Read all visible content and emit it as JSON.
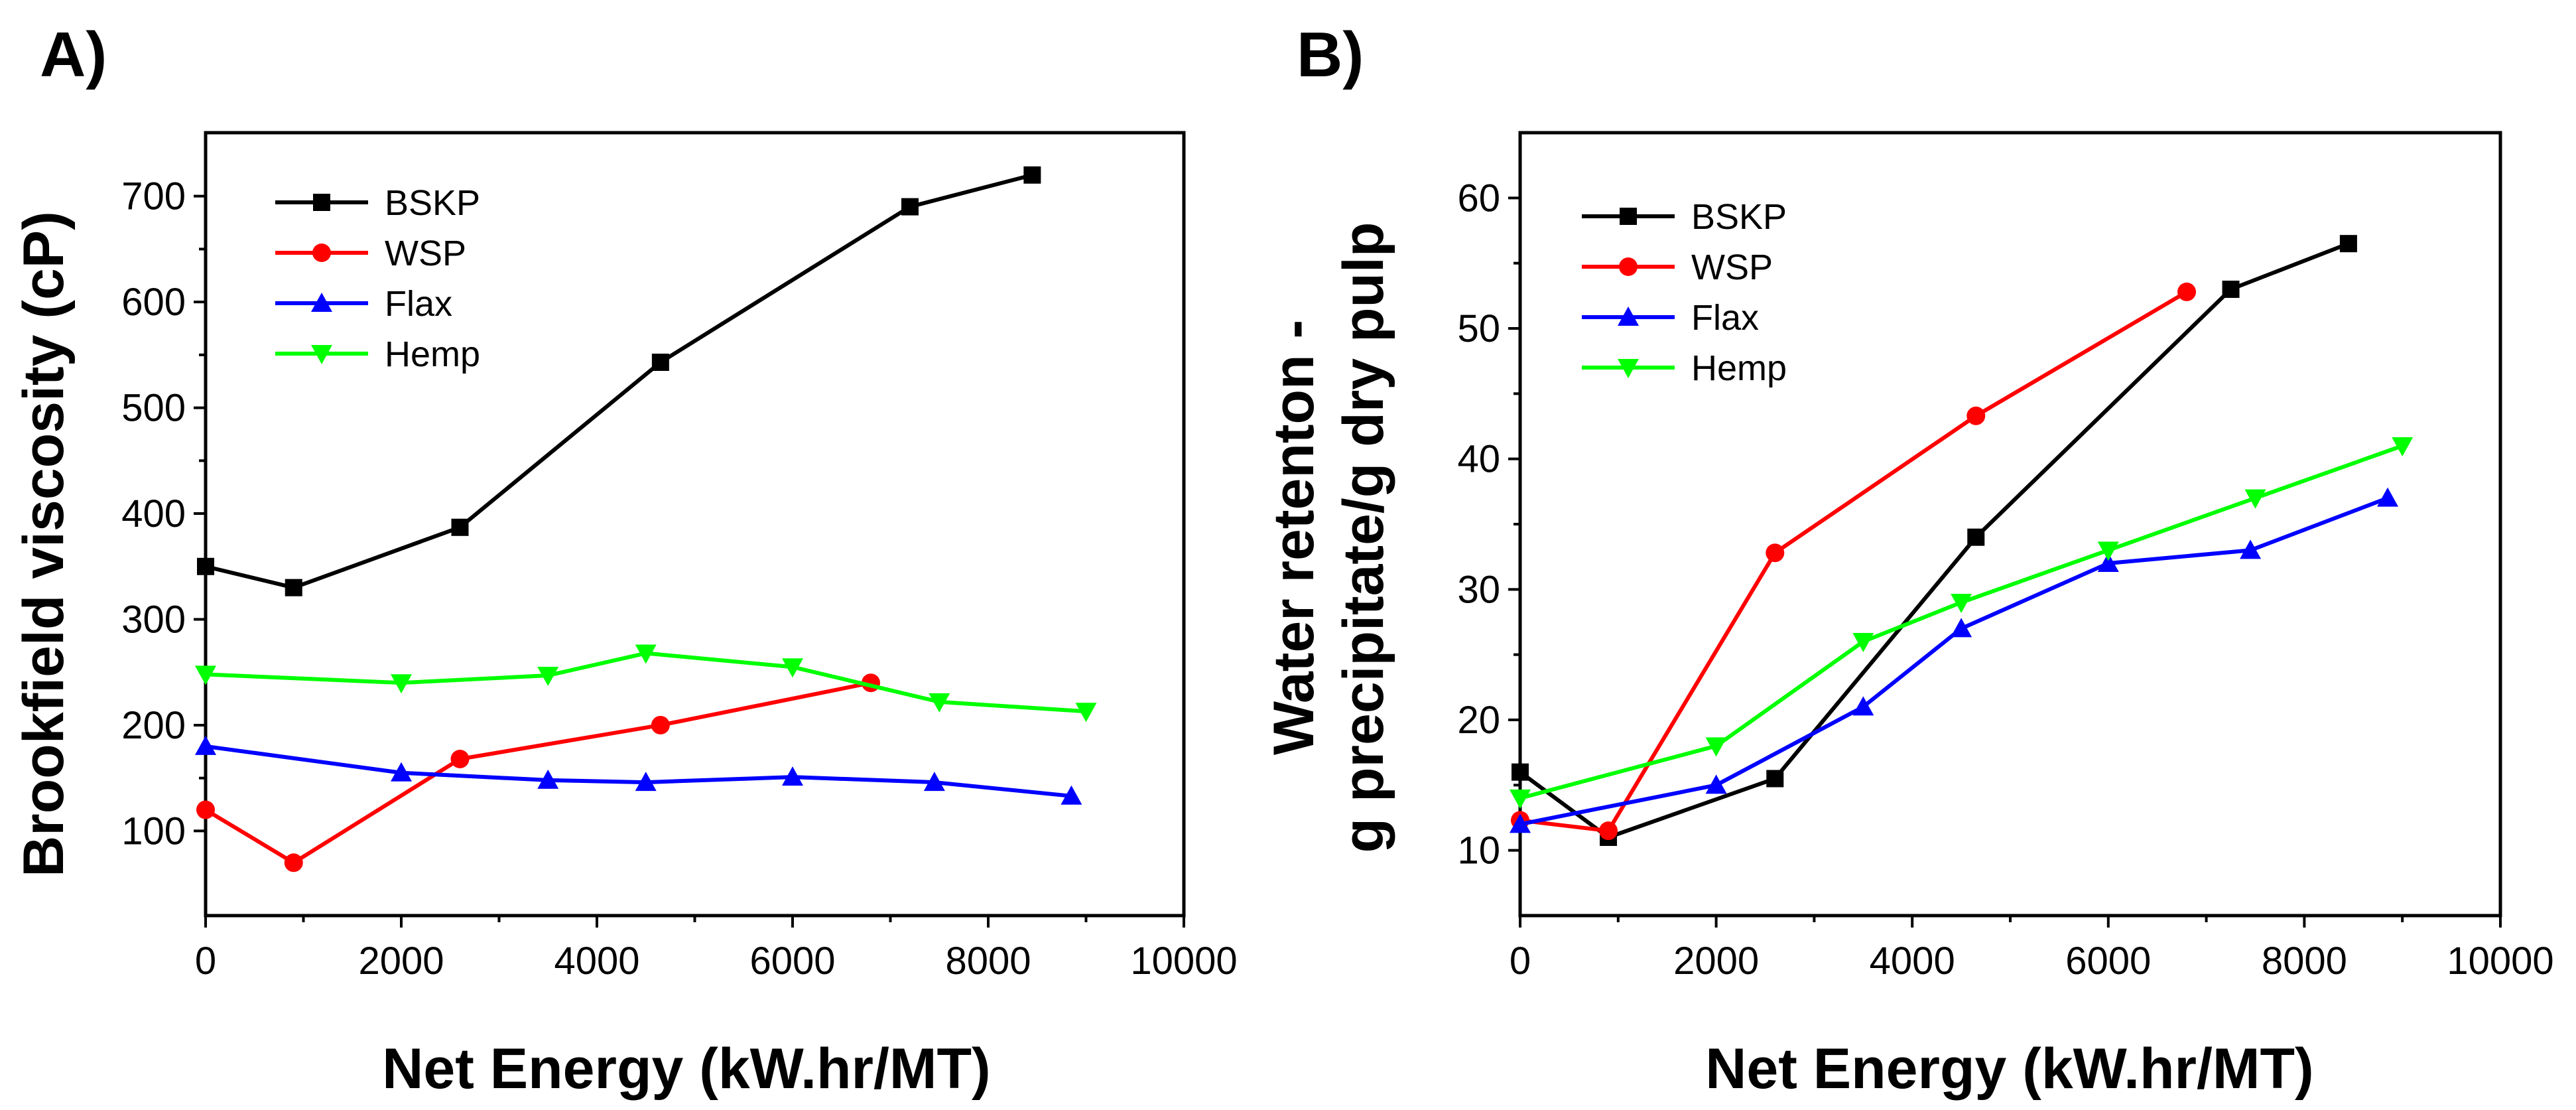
{
  "chart_data": [
    {
      "type": "line",
      "panel_label": "A)",
      "xlabel": "Net Energy (kW.hr/MT)",
      "ylabel": "Brookfield viscosity (cP)",
      "xlim": [
        0,
        10000
      ],
      "ylim": [
        20,
        760
      ],
      "xticks": [
        0,
        2000,
        4000,
        6000,
        8000,
        10000
      ],
      "yticks": [
        100,
        200,
        300,
        400,
        500,
        600,
        700
      ],
      "legend_position": "top-left",
      "series": [
        {
          "name": "BSKP",
          "color": "#000000",
          "marker": "square",
          "x": [
            0,
            900,
            2600,
            4650,
            7200,
            8450
          ],
          "y": [
            350,
            330,
            387,
            543,
            690,
            720
          ]
        },
        {
          "name": "WSP",
          "color": "#ff0000",
          "marker": "circle",
          "x": [
            0,
            900,
            2600,
            4650,
            6800
          ],
          "y": [
            120,
            70,
            168,
            200,
            240
          ]
        },
        {
          "name": "Flax",
          "color": "#0000ff",
          "marker": "triangle-up",
          "x": [
            0,
            2000,
            3500,
            4500,
            6000,
            7450,
            8850
          ],
          "y": [
            180,
            155,
            148,
            146,
            151,
            146,
            133
          ]
        },
        {
          "name": "Hemp",
          "color": "#00ff00",
          "marker": "triangle-down",
          "x": [
            0,
            2000,
            3500,
            4500,
            6000,
            7500,
            9000
          ],
          "y": [
            248,
            240,
            247,
            268,
            255,
            222,
            213
          ]
        }
      ]
    },
    {
      "type": "line",
      "panel_label": "B)",
      "xlabel": "Net Energy (kW.hr/MT)",
      "ylabel_lines": [
        "Water retenton -",
        "g precipitate/g dry pulp"
      ],
      "xlim": [
        0,
        10000
      ],
      "ylim": [
        5,
        65
      ],
      "xticks": [
        0,
        2000,
        4000,
        6000,
        8000,
        10000
      ],
      "yticks": [
        10,
        20,
        30,
        40,
        50,
        60
      ],
      "legend_position": "top-left",
      "series": [
        {
          "name": "BSKP",
          "color": "#000000",
          "marker": "square",
          "x": [
            0,
            900,
            2600,
            4650,
            7250,
            8450
          ],
          "y": [
            16,
            11,
            15.5,
            34,
            53,
            56.5
          ]
        },
        {
          "name": "WSP",
          "color": "#ff0000",
          "marker": "circle",
          "x": [
            0,
            900,
            2600,
            4650,
            6800
          ],
          "y": [
            12.3,
            11.5,
            32.8,
            43.3,
            52.8
          ]
        },
        {
          "name": "Flax",
          "color": "#0000ff",
          "marker": "triangle-up",
          "x": [
            0,
            2000,
            3500,
            4500,
            6000,
            7450,
            8850
          ],
          "y": [
            12,
            15,
            21,
            27,
            32,
            33,
            37
          ]
        },
        {
          "name": "Hemp",
          "color": "#00ff00",
          "marker": "triangle-down",
          "x": [
            0,
            2000,
            3500,
            4500,
            6000,
            7500,
            9000
          ],
          "y": [
            14,
            18,
            26,
            29,
            33,
            37,
            41
          ]
        }
      ]
    }
  ]
}
